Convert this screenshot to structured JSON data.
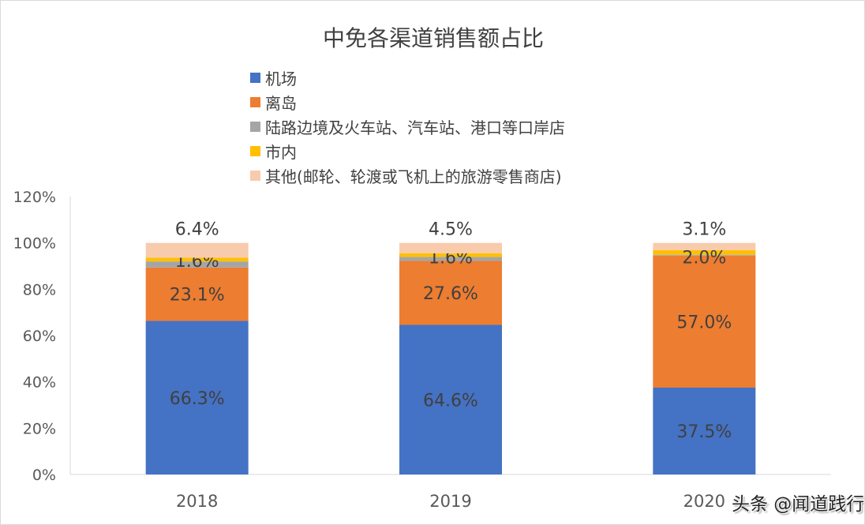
{
  "chart_data": {
    "type": "bar",
    "stacked": true,
    "title": "中免各渠道销售额占比",
    "categories": [
      "2018",
      "2019",
      "2020"
    ],
    "series": [
      {
        "name": "机场",
        "color": "#4472C4",
        "values": [
          66.3,
          64.6,
          37.5
        ],
        "labels": [
          "66.3%",
          "64.6%",
          "37.5%"
        ]
      },
      {
        "name": "离岛",
        "color": "#ED7D31",
        "values": [
          23.1,
          27.6,
          57.0
        ],
        "labels": [
          "23.1%",
          "27.6%",
          "57.0%"
        ]
      },
      {
        "name": "陆路边境及火车站、汽车站、港口等口岸店",
        "color": "#A5A5A5",
        "values": [
          2.6,
          1.7,
          0.4
        ],
        "labels": [
          "",
          "",
          ""
        ]
      },
      {
        "name": "市内",
        "color": "#FFC000",
        "values": [
          1.6,
          1.6,
          2.0
        ],
        "labels": [
          "1.6%",
          "1.6%",
          "2.0%"
        ]
      },
      {
        "name": "其他(邮轮、轮渡或飞机上的旅游零售商店)",
        "color": "#F8CBAD",
        "values": [
          6.4,
          4.5,
          3.1
        ],
        "labels": [
          "6.4%",
          "4.5%",
          "3.1%"
        ]
      }
    ],
    "ylim": [
      0,
      120
    ],
    "yticks": [
      "0%",
      "20%",
      "40%",
      "60%",
      "80%",
      "100%",
      "120%"
    ],
    "grid": false,
    "legend": "top"
  },
  "watermark": "头条 @闻道践行"
}
